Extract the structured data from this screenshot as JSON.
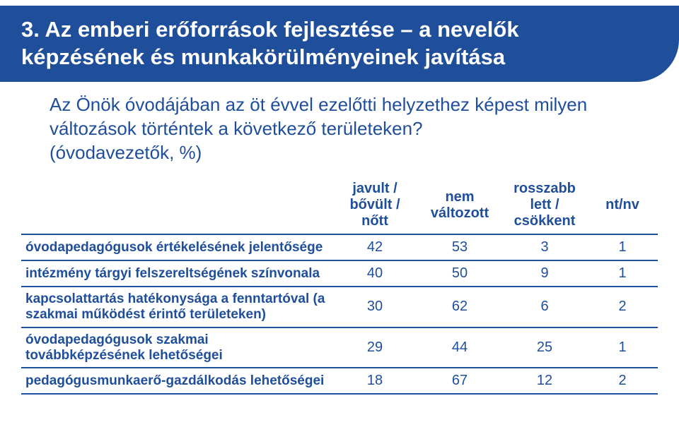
{
  "header": {
    "title_line1": "3. Az emberi erőforrások fejlesztése – a nevelők",
    "title_line2": "képzésének és munkakörülményeinek javítása"
  },
  "subtitle": {
    "line1": "Az Önök óvodájában az öt évvel ezelőtti helyzethez képest milyen",
    "line2": "változások történtek a következő területeken?",
    "line3": "(óvodavezetők, %)"
  },
  "table": {
    "columns": [
      "",
      "javult / bővült / nőtt",
      "nem változott",
      "rosszabb lett / csökkent",
      "nt/nv"
    ],
    "rows": [
      {
        "label": "óvodapedagógusok értékelésének jelentősége",
        "v": [
          42,
          53,
          3,
          1
        ]
      },
      {
        "label": "intézmény tárgyi felszereltségének színvonala",
        "v": [
          40,
          50,
          9,
          1
        ]
      },
      {
        "label": "kapcsolattartás hatékonysága a fenntartóval (a szakmai működést érintő területeken)",
        "v": [
          30,
          62,
          6,
          2
        ]
      },
      {
        "label": "óvodapedagógusok szakmai továbbképzésének lehetőségei",
        "v": [
          29,
          44,
          25,
          1
        ]
      },
      {
        "label": "pedagógusmunkaerő-gazdálkodás lehetőségei",
        "v": [
          18,
          67,
          12,
          2
        ]
      }
    ],
    "colors": {
      "brand": "#1f4e9b",
      "background": "#ffffff",
      "border": "#1f4e9b",
      "header_text": "#ffffff"
    },
    "font": {
      "title_size_pt": 24,
      "subtitle_size_pt": 20,
      "table_header_size_pt": 15,
      "table_cell_size_pt": 15,
      "rowlabel_weight": "bold"
    }
  }
}
